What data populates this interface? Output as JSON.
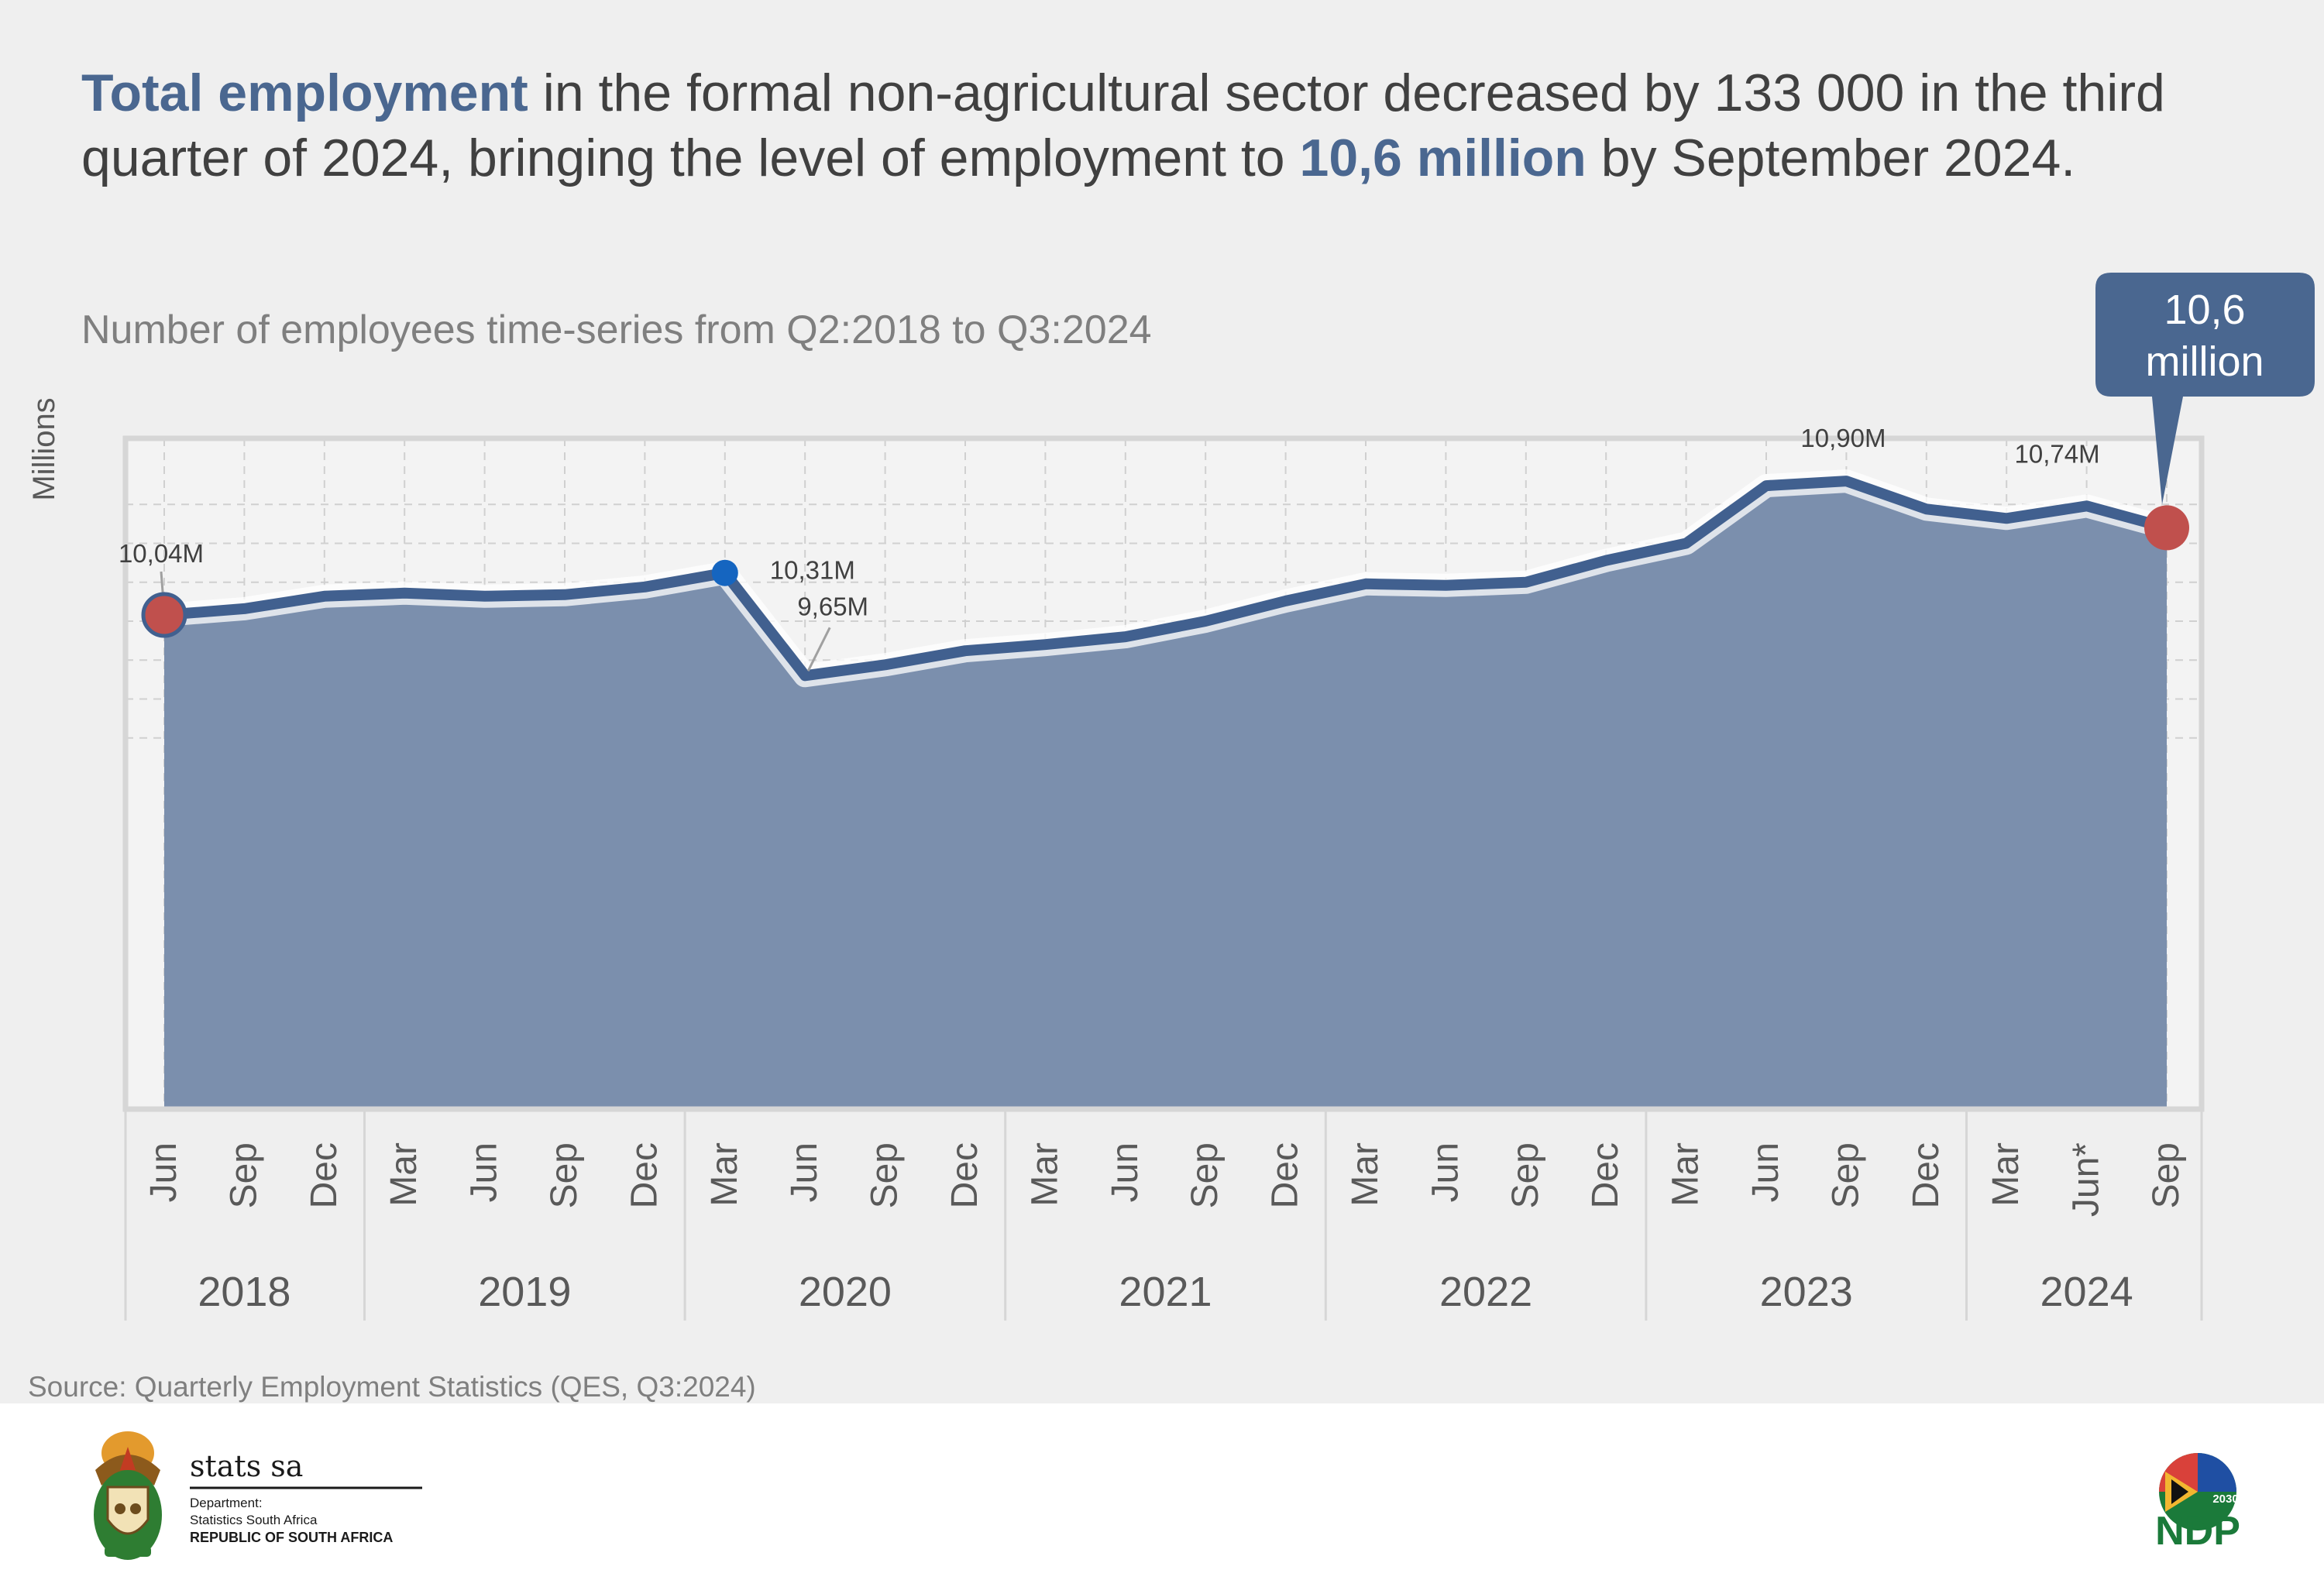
{
  "headline": {
    "bold1": "Total employment",
    "text1": " in the formal non-agricultural sector decreased by 133 000 in the third quarter of 2024, bringing the level of employment to ",
    "bold2": "10,6 million",
    "text2": " by September 2024."
  },
  "chart_data": {
    "type": "area",
    "title": "Number of employees time-series from Q2:2018 to Q3:2024",
    "ylabel": "Millions",
    "xlabel": "",
    "ylim": [
      9.0,
      11.0
    ],
    "grid": true,
    "categories": [
      "Jun",
      "Sep",
      "Dec",
      "Mar",
      "Jun",
      "Sep",
      "Dec",
      "Mar",
      "Jun",
      "Sep",
      "Dec",
      "Mar",
      "Jun",
      "Sep",
      "Dec",
      "Mar",
      "Jun",
      "Sep",
      "Dec",
      "Mar",
      "Jun",
      "Sep",
      "Dec",
      "Mar",
      "Jun*",
      "Sep"
    ],
    "years": [
      {
        "label": "2018",
        "span": 3
      },
      {
        "label": "2019",
        "span": 4
      },
      {
        "label": "2020",
        "span": 4
      },
      {
        "label": "2021",
        "span": 4
      },
      {
        "label": "2022",
        "span": 4
      },
      {
        "label": "2023",
        "span": 4
      },
      {
        "label": "2024",
        "span": 3
      }
    ],
    "series": [
      {
        "name": "Number of employees",
        "values": [
          10.04,
          10.08,
          10.16,
          10.18,
          10.16,
          10.17,
          10.22,
          10.31,
          9.65,
          9.72,
          9.81,
          9.85,
          9.9,
          10.0,
          10.13,
          10.24,
          10.23,
          10.25,
          10.39,
          10.5,
          10.87,
          10.9,
          10.72,
          10.66,
          10.74,
          10.6
        ]
      }
    ],
    "annotations": [
      {
        "index": 0,
        "label": "10,04M"
      },
      {
        "index": 7,
        "label": "10,31M"
      },
      {
        "index": 8,
        "label": "9,65M"
      },
      {
        "index": 21,
        "label": "10,90M"
      },
      {
        "index": 24,
        "label": "10,74M"
      }
    ],
    "callout": {
      "line1": "10,6",
      "line2": "million"
    }
  },
  "source": "Source: Quarterly Employment Statistics (QES, Q3:2024)",
  "logo": {
    "name": "stats sa",
    "dept": "Department:",
    "org": "Statistics South Africa",
    "country": "REPUBLIC OF SOUTH AFRICA"
  },
  "ndp": {
    "text": "NDP",
    "year": "2030"
  },
  "colors": {
    "line": "#41608f",
    "area": "#7b8fad",
    "highlight": "#c0504d",
    "point": "#1565c0",
    "callout": "#4a6790"
  }
}
